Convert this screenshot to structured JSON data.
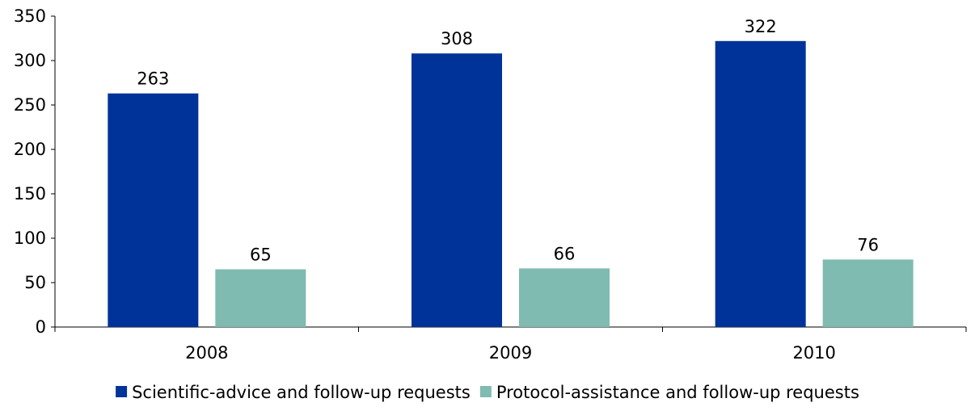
{
  "chart_data": {
    "type": "bar",
    "categories": [
      "2008",
      "2009",
      "2010"
    ],
    "series": [
      {
        "name": "Scientific-advice and follow-up requests",
        "values": [
          263,
          308,
          322
        ],
        "color": "#003399"
      },
      {
        "name": "Protocol-assistance and follow-up requests",
        "values": [
          65,
          66,
          76
        ],
        "color": "#7FBBB1"
      }
    ],
    "ylim": [
      0,
      350
    ],
    "yticks": [
      "0",
      "50",
      "100",
      "150",
      "200",
      "250",
      "300",
      "350"
    ],
    "grid": false,
    "legend": "bottom",
    "data_labels": true
  }
}
